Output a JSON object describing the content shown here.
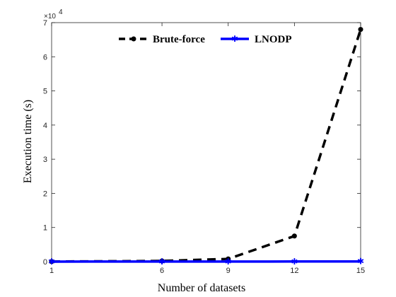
{
  "chart_data": {
    "type": "line",
    "x": [
      1,
      6,
      9,
      12,
      15
    ],
    "x_tick_labels": [
      "1",
      "6",
      "9",
      "12",
      "15"
    ],
    "xlabel": "Number of datasets",
    "ylabel": "Execution time (s)",
    "y_tick_labels": [
      "0",
      "1",
      "2",
      "3",
      "4",
      "5",
      "6",
      "7"
    ],
    "y_multiplier": {
      "base": "×10",
      "exponent": "4"
    },
    "ylim": [
      0,
      70000
    ],
    "grid": false,
    "legend_position": "top",
    "series": [
      {
        "name": "Brute-force",
        "values": [
          30,
          200,
          800,
          7500,
          68000
        ],
        "color": "#000000",
        "line_style": "dashed",
        "marker": "circle"
      },
      {
        "name": "LNODP",
        "values": [
          10,
          20,
          30,
          40,
          60
        ],
        "color": "#0000ff",
        "line_style": "solid",
        "marker": "star"
      }
    ]
  }
}
